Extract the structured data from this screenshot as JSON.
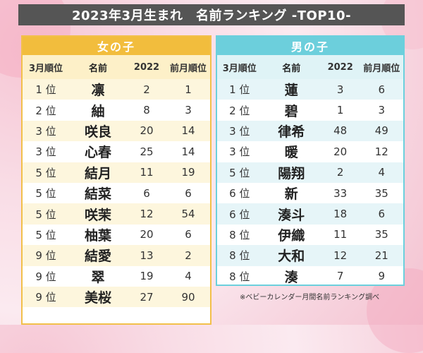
{
  "title": "2023年3月生まれ　名前ランキング -TOP10-",
  "girls": {
    "label": "女の子",
    "headers": [
      "3月順位",
      "名前",
      "2022",
      "前月順位"
    ],
    "rows": [
      {
        "rank": "1 位",
        "name": "凛",
        "y2022": "2",
        "prev": "1"
      },
      {
        "rank": "2 位",
        "name": "紬",
        "y2022": "8",
        "prev": "3"
      },
      {
        "rank": "3 位",
        "name": "咲良",
        "y2022": "20",
        "prev": "14"
      },
      {
        "rank": "3 位",
        "name": "心春",
        "y2022": "25",
        "prev": "14"
      },
      {
        "rank": "5 位",
        "name": "結月",
        "y2022": "11",
        "prev": "19"
      },
      {
        "rank": "5 位",
        "name": "結菜",
        "y2022": "6",
        "prev": "6"
      },
      {
        "rank": "5 位",
        "name": "咲茉",
        "y2022": "12",
        "prev": "54"
      },
      {
        "rank": "5 位",
        "name": "柚葉",
        "y2022": "20",
        "prev": "6"
      },
      {
        "rank": "9 位",
        "name": "結愛",
        "y2022": "13",
        "prev": "2"
      },
      {
        "rank": "9 位",
        "name": "翠",
        "y2022": "19",
        "prev": "4"
      },
      {
        "rank": "9 位",
        "name": "美桜",
        "y2022": "27",
        "prev": "90"
      }
    ]
  },
  "boys": {
    "label": "男の子",
    "headers": [
      "3月順位",
      "名前",
      "2022",
      "前月順位"
    ],
    "rows": [
      {
        "rank": "1 位",
        "name": "蓮",
        "y2022": "3",
        "prev": "6"
      },
      {
        "rank": "2 位",
        "name": "碧",
        "y2022": "1",
        "prev": "3"
      },
      {
        "rank": "3 位",
        "name": "律希",
        "y2022": "48",
        "prev": "49"
      },
      {
        "rank": "3 位",
        "name": "暖",
        "y2022": "20",
        "prev": "12"
      },
      {
        "rank": "5 位",
        "name": "陽翔",
        "y2022": "2",
        "prev": "4"
      },
      {
        "rank": "6 位",
        "name": "新",
        "y2022": "33",
        "prev": "35"
      },
      {
        "rank": "6 位",
        "name": "湊斗",
        "y2022": "18",
        "prev": "6"
      },
      {
        "rank": "8 位",
        "name": "伊織",
        "y2022": "11",
        "prev": "35"
      },
      {
        "rank": "8 位",
        "name": "大和",
        "y2022": "12",
        "prev": "21"
      },
      {
        "rank": "8 位",
        "name": "湊",
        "y2022": "7",
        "prev": "9"
      }
    ]
  },
  "source": "※ベビーカレンダー月間名前ランキング調べ",
  "colors": {
    "girls_accent": "#f2bd3d",
    "boys_accent": "#6ccfdc",
    "title_bg": "#555555"
  }
}
